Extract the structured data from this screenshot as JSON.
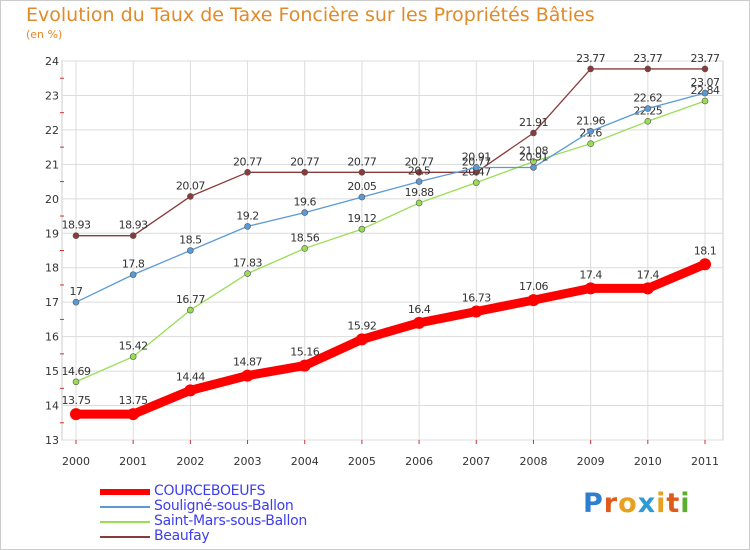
{
  "title": "Evolution du Taux de Taxe Foncière sur les Propriétés Bâties",
  "subtitle": "(en %)",
  "logo": {
    "text": [
      "P",
      "r",
      "o",
      "x",
      "i",
      "t",
      "i"
    ],
    "colors": [
      "#2e7fd0",
      "#e05a1a",
      "#e8a020",
      "#2e9bd8",
      "#e8a020",
      "#e05a1a",
      "#5ab02e"
    ]
  },
  "chart_data": {
    "type": "line",
    "title": "Evolution du Taux de Taxe Foncière sur les Propriétés Bâties",
    "ylabel": "(en %)",
    "xlabel": "",
    "x": [
      "2000",
      "2001",
      "2002",
      "2003",
      "2004",
      "2005",
      "2006",
      "2007",
      "2008",
      "2009",
      "2010",
      "2011"
    ],
    "ylim": [
      13,
      24
    ],
    "yticks": [
      "13",
      "14",
      "15",
      "16",
      "17",
      "18",
      "19",
      "20",
      "21",
      "22",
      "23",
      "24"
    ],
    "grid": true,
    "legend": "bottom-left",
    "series": [
      {
        "name": "COURCEBOEUFS",
        "color": "#ff0000",
        "values": [
          13.75,
          13.75,
          14.44,
          14.87,
          15.16,
          15.92,
          16.4,
          16.73,
          17.06,
          17.4,
          17.4,
          18.1
        ],
        "labels": [
          "13.75",
          "13.75",
          "14.44",
          "14.87",
          "15.16",
          "15.92",
          "16.4",
          "16.73",
          "17.06",
          "17.4",
          "17.4",
          "18.1"
        ]
      },
      {
        "name": "Souligné-sous-Ballon",
        "color": "#5b9bd5",
        "values": [
          17,
          17.8,
          18.5,
          19.2,
          19.6,
          20.05,
          20.5,
          20.91,
          20.91,
          21.96,
          22.62,
          23.07
        ],
        "labels": [
          "17",
          "17.8",
          "18.5",
          "19.2",
          "19.6",
          "20.05",
          "20.5",
          "20.91",
          "20.91",
          "21.96",
          "22.62",
          "23.07"
        ]
      },
      {
        "name": "Saint-Mars-sous-Ballon",
        "color": "#99dd55",
        "values": [
          14.69,
          15.42,
          16.77,
          17.83,
          18.56,
          19.12,
          19.88,
          20.47,
          21.08,
          21.6,
          22.25,
          22.84
        ],
        "labels": [
          "14.69",
          "15.42",
          "16.77",
          "17.83",
          "18.56",
          "19.12",
          "19.88",
          "20.47",
          "21.08",
          "21.6",
          "22.25",
          "22.84"
        ]
      },
      {
        "name": "Beaufay",
        "color": "#8b3a3a",
        "values": [
          18.93,
          18.93,
          20.07,
          20.77,
          20.77,
          20.77,
          20.77,
          20.77,
          21.91,
          23.77,
          23.77,
          23.77
        ],
        "labels": [
          "18.93",
          "18.93",
          "20.07",
          "20.77",
          "20.77",
          "20.77",
          "20.77",
          "20.77",
          "21.91",
          "23.77",
          "23.77",
          "23.77"
        ]
      }
    ]
  }
}
